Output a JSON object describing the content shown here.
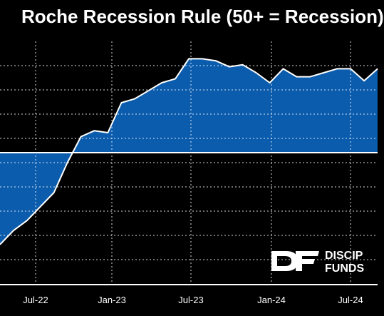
{
  "chart_data": {
    "type": "area",
    "title": "Roche Recession Rule (50+ = Recession)",
    "x_ticks": [
      "Jul-22",
      "Jan-23",
      "Jul-23",
      "Jan-24",
      "Jul-24"
    ],
    "threshold": 50,
    "grid": true,
    "x": [
      "2022-05",
      "2022-06",
      "2022-07",
      "2022-08",
      "2022-09",
      "2022-10",
      "2022-11",
      "2022-12",
      "2023-01",
      "2023-02",
      "2023-03",
      "2023-04",
      "2023-05",
      "2023-06",
      "2023-07",
      "2023-08",
      "2023-09",
      "2023-10",
      "2023-11",
      "2023-12",
      "2024-01",
      "2024-02",
      "2024-03",
      "2024-04",
      "2024-05",
      "2024-06",
      "2024-07",
      "2024-08",
      "2024-09"
    ],
    "values": [
      4,
      11,
      16,
      23,
      30,
      45,
      58,
      61,
      60,
      75,
      77,
      81,
      85,
      87,
      97,
      97,
      96,
      93,
      94,
      90,
      85,
      92,
      88,
      88,
      90,
      92,
      92,
      86,
      92
    ],
    "colors": {
      "fill": "#0b5cad",
      "line": "#ffffff",
      "grid": "#ffffff",
      "background": "#000000"
    }
  },
  "logo": {
    "mark": "DF",
    "line1": "DISCIP",
    "line2": "FUNDS"
  }
}
